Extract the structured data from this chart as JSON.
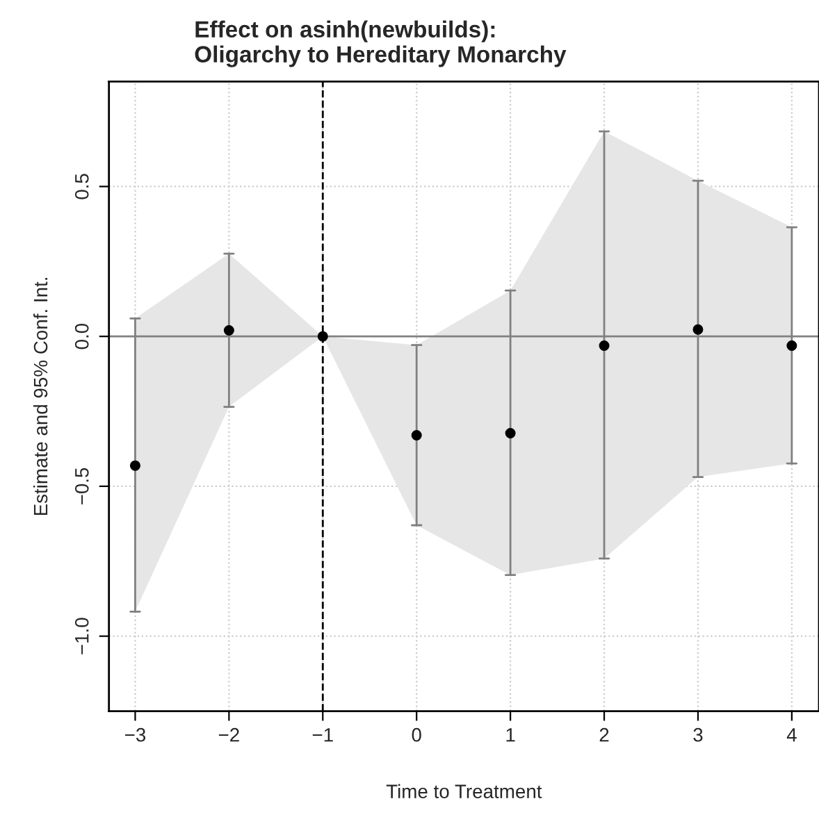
{
  "chart_data": {
    "type": "scatter",
    "title": "Effect on asinh(newbuilds):\nOligarchy to Hereditary Monarchy",
    "xlabel": "Time to Treatment",
    "ylabel": "Estimate and 95% Conf. Int.",
    "x": [
      -3,
      -2,
      -1,
      0,
      1,
      2,
      3,
      4
    ],
    "series": [
      {
        "color": "#000000",
        "values": [
          -0.431,
          0.02,
          0,
          -0.33,
          -0.323,
          -0.031,
          0.023,
          -0.031
        ],
        "errors": [
          [
            -0.918,
            0.06
          ],
          [
            -0.235,
            0.276
          ],
          null,
          [
            -0.63,
            -0.029
          ],
          [
            -0.796,
            0.153
          ],
          [
            -0.741,
            0.684
          ],
          [
            -0.469,
            0.519
          ],
          [
            -0.424,
            0.364
          ]
        ],
        "lower": [
          -0.918,
          -0.235,
          0,
          -0.63,
          -0.796,
          -0.741,
          -0.469,
          -0.424
        ],
        "upper": [
          0.06,
          0.276,
          0,
          -0.029,
          0.153,
          0.684,
          0.519,
          0.364
        ]
      }
    ],
    "xlim": [
      -3.28,
      4.29
    ],
    "ylim": [
      -1.25,
      0.85
    ],
    "xticks": [
      {
        "value": -3,
        "label": "−3"
      },
      {
        "value": -2,
        "label": "−2"
      },
      {
        "value": -1,
        "label": "−1"
      },
      0,
      1,
      2,
      3,
      4
    ],
    "yticks": [
      {
        "value": -1.0,
        "label": "−1.0"
      },
      {
        "value": -0.5,
        "label": "−0.5"
      },
      {
        "value": 0.0,
        "label": "0.0"
      },
      0.5
    ],
    "ref_lines": [
      {
        "axis": "y",
        "value": 0,
        "color": "#808080",
        "line_style": "solid"
      },
      {
        "axis": "x",
        "value": -1,
        "color": "#000000",
        "line_style": "dashed"
      }
    ],
    "grid": true,
    "marker": "circle"
  }
}
